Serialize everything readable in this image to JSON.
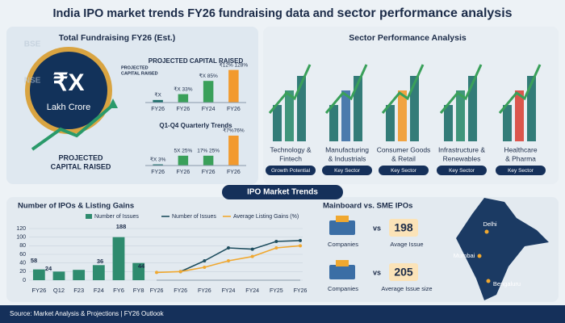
{
  "header": {
    "title": "India IPO market trends FY26 fundraising data and",
    "title_emphasis": "sector performance analysis"
  },
  "watermarks": [
    "BSE",
    "NSE",
    "NSE"
  ],
  "fundraising": {
    "heading": "Total Fundraising FY26 (Est.)",
    "amount": "₹X",
    "unit": "Lakh Crore",
    "side_note": [
      "PROJECTED",
      "CAPITAL RAISED"
    ],
    "caption": [
      "PROJECTED",
      "CAPITAL RAISED"
    ]
  },
  "chart_data": [
    {
      "type": "bar",
      "title": "PROJECTED CAPITAL RAISED",
      "categories": [
        "FY26",
        "FY26",
        "FY24",
        "FY26"
      ],
      "values": [
        10,
        33,
        85,
        128
      ],
      "value_labels": [
        "₹X",
        "₹X 33%",
        "₹X 85%",
        "₹12% 128%"
      ],
      "colors": [
        "#1f6f6a",
        "#3aa05a",
        "#3aa05a",
        "#f29a2e"
      ],
      "ylim": [
        0,
        130
      ]
    },
    {
      "type": "bar",
      "title": "Q1-Q4 Quarterly Trends",
      "categories": [
        "FY26",
        "FY26",
        "FY26",
        "FY26"
      ],
      "values": [
        3,
        25,
        25,
        76
      ],
      "value_labels": [
        "₹X 3%",
        "5X 25%",
        "17% 25%",
        "₹7%76%"
      ],
      "colors": [
        "#1f6f6a",
        "#3aa05a",
        "#3aa05a",
        "#f29a2e"
      ],
      "ylim": [
        0,
        80
      ]
    },
    {
      "type": "bar",
      "title": "Number of IPOs & Listing Gains",
      "categories": [
        "FY26",
        "Q12",
        "F23",
        "F24",
        "FY6",
        "FY8"
      ],
      "series": [
        {
          "name": "Number of Issues",
          "color": "#2e8b6e",
          "values": [
            25,
            20,
            24,
            35,
            100,
            40
          ]
        }
      ],
      "annotations": [
        "58",
        "24",
        "36",
        "188",
        "44"
      ],
      "ylim": [
        0,
        120
      ],
      "yticks": [
        0,
        20,
        40,
        60,
        80,
        100,
        120
      ]
    },
    {
      "type": "line",
      "categories": [
        "FY26",
        "FY26",
        "FY26",
        "FY24",
        "FY24",
        "FY25",
        "FY26"
      ],
      "series": [
        {
          "name": "Number of Issues",
          "color": "#1f4e5f",
          "values": [
            null,
            20,
            45,
            75,
            72,
            90,
            92
          ]
        },
        {
          "name": "Average Listing Gains (%)",
          "color": "#f0a830",
          "values": [
            18,
            20,
            30,
            45,
            55,
            75,
            80
          ]
        }
      ],
      "ylim": [
        0,
        120
      ]
    }
  ],
  "sectors": {
    "heading": "Sector Performance Analysis",
    "items": [
      {
        "name": [
          "Technology &",
          "Fintech"
        ],
        "tag": "Growth Potential"
      },
      {
        "name": [
          "Manufacturing",
          "& Industrials"
        ],
        "tag": "Key Sector"
      },
      {
        "name": [
          "Consumer Goods",
          "& Retail"
        ],
        "tag": "Key Sector"
      },
      {
        "name": [
          "Infrastructure &",
          "Renewables"
        ],
        "tag": "Key Sector"
      },
      {
        "name": [
          "Healthcare",
          "& Pharma"
        ],
        "tag": "Key Sector"
      }
    ]
  },
  "trends_banner": "IPO Market Trends",
  "comparison": {
    "heading": "Mainboard vs. SME IPOs",
    "rows": [
      {
        "left": "Companies",
        "vs": "vs",
        "value": "198",
        "right": "Avage Issue"
      },
      {
        "left": "Companies",
        "vs": "vs",
        "value": "205",
        "right": "Average Issue size"
      }
    ]
  },
  "map": {
    "cities": [
      "Delhi",
      "Mumbai",
      "Bengaluru"
    ]
  },
  "footer": "Source: Market Analysis & Projections | FY26 Outlook"
}
